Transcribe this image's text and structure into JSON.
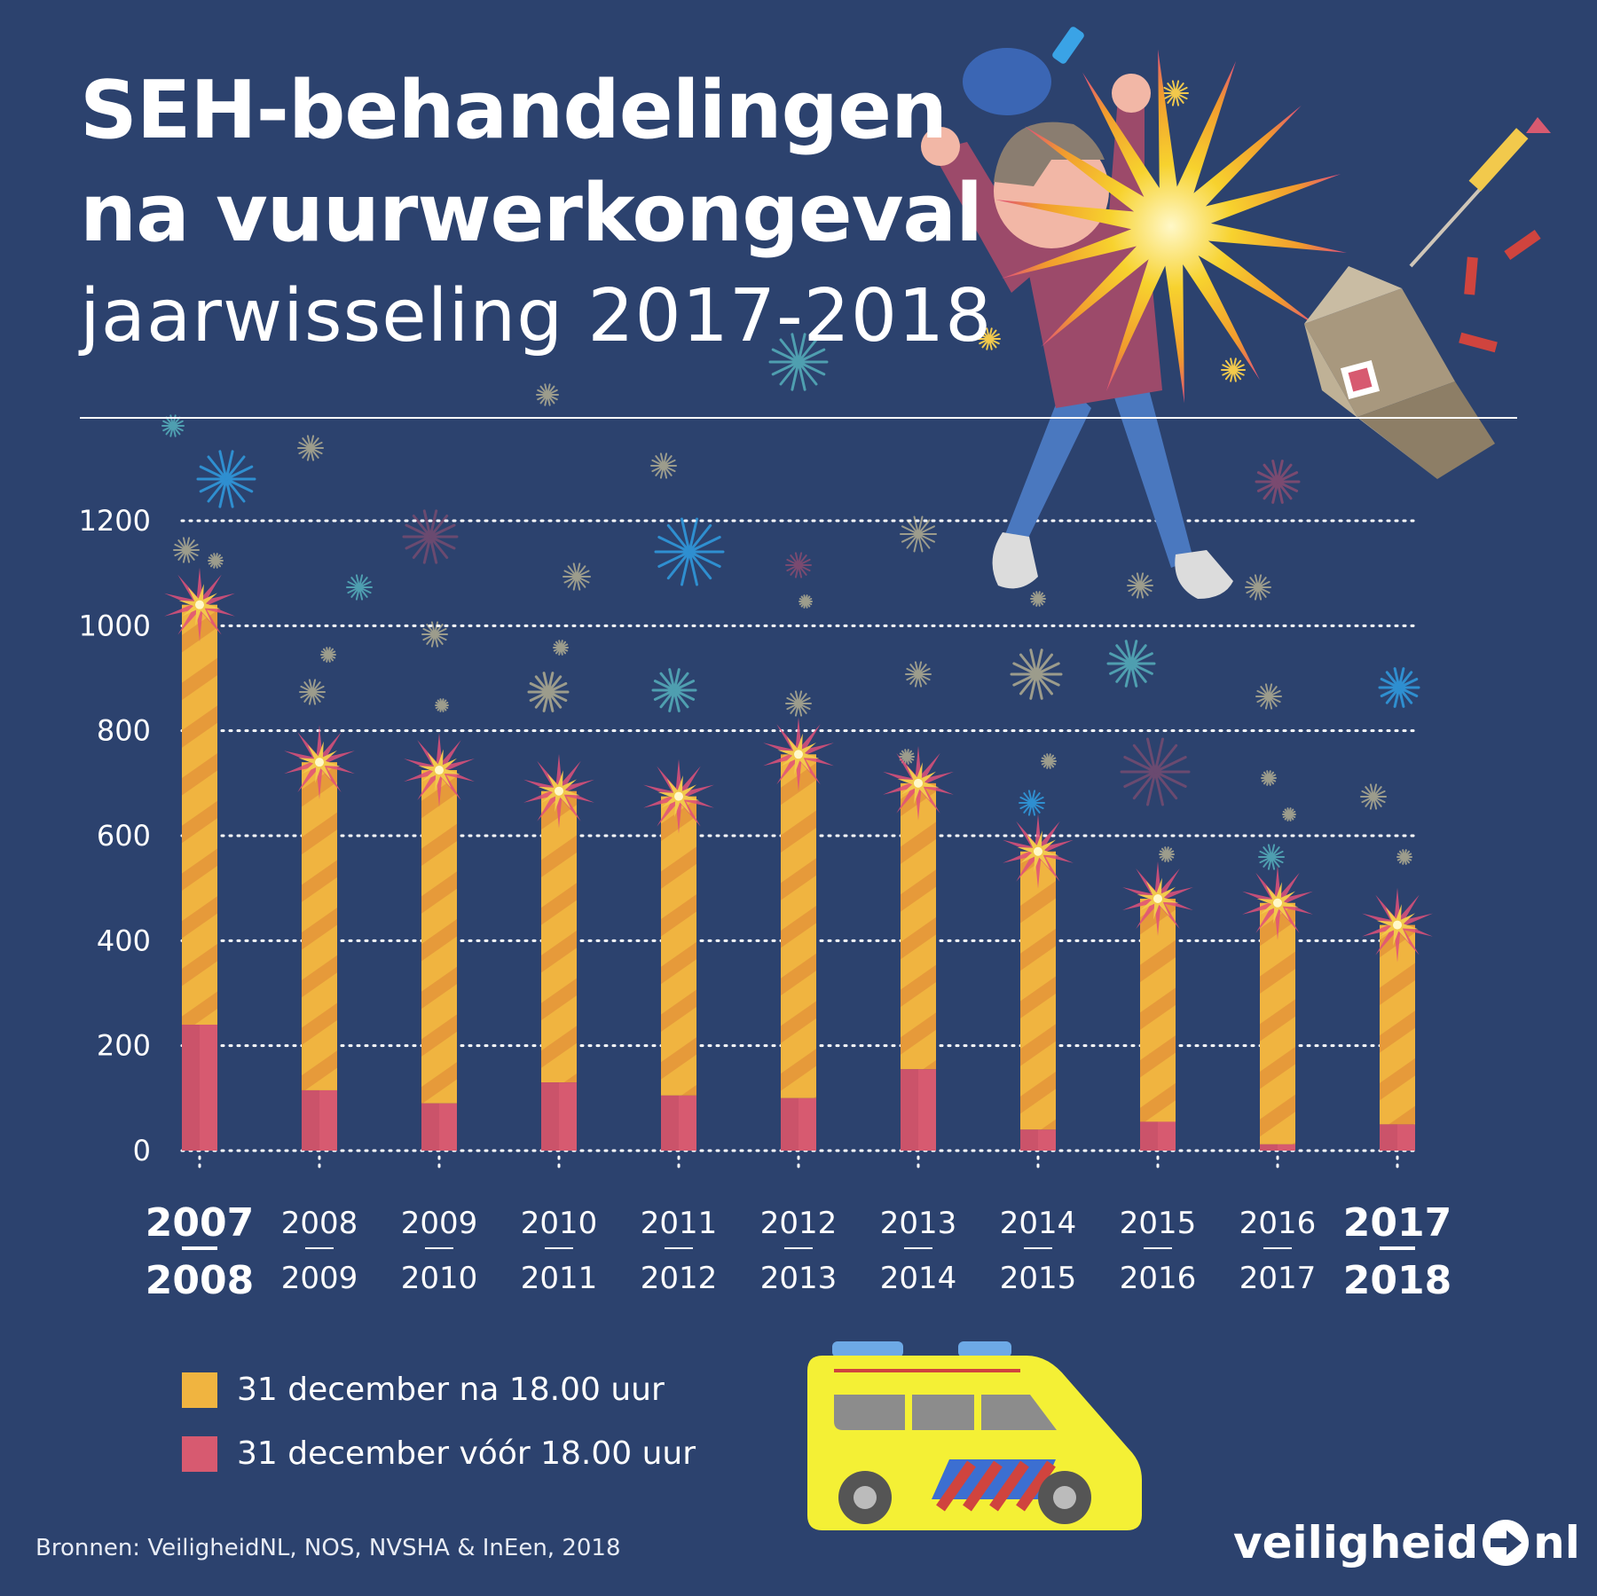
{
  "title": {
    "line1": "SEH-behandelingen",
    "line2": "na vuurwerkongeval",
    "subtitle": "jaarwisseling 2017-2018"
  },
  "colors": {
    "background": "#2c426e",
    "orange": "#f0b440",
    "orange_stripe": "#e69a3a",
    "pink": "#d75a70",
    "pink_dark": "#c04b64",
    "spark": "#f2c94c",
    "spark_outer": "#e0507a"
  },
  "legend": {
    "after": "31 december na 18.00 uur",
    "before": "31 december vóór 18.00 uur"
  },
  "source": "Bronnen: VeiligheidNL, NOS, NVSHA & InEen, 2018",
  "brand": {
    "left": "veiligheid",
    "right": "nl",
    "icon": "arrow-circle-icon"
  },
  "chart_data": {
    "type": "bar",
    "stacked": true,
    "title": "SEH-behandelingen na vuurwerkongeval",
    "ylim": [
      0,
      1200
    ],
    "yticks": [
      0,
      200,
      400,
      600,
      800,
      1000,
      1200
    ],
    "grid": true,
    "categories": [
      {
        "top": "2007",
        "bottom": "2008",
        "bold": true
      },
      {
        "top": "2008",
        "bottom": "2009",
        "bold": false
      },
      {
        "top": "2009",
        "bottom": "2010",
        "bold": false
      },
      {
        "top": "2010",
        "bottom": "2011",
        "bold": false
      },
      {
        "top": "2011",
        "bottom": "2012",
        "bold": false
      },
      {
        "top": "2012",
        "bottom": "2013",
        "bold": false
      },
      {
        "top": "2013",
        "bottom": "2014",
        "bold": false
      },
      {
        "top": "2014",
        "bottom": "2015",
        "bold": false
      },
      {
        "top": "2015",
        "bottom": "2016",
        "bold": false
      },
      {
        "top": "2016",
        "bottom": "2017",
        "bold": false
      },
      {
        "top": "2017",
        "bottom": "2018",
        "bold": true
      }
    ],
    "series": [
      {
        "name": "31 december vóór 18.00 uur",
        "color": "#d75a70",
        "values": [
          240,
          115,
          90,
          130,
          105,
          100,
          155,
          40,
          55,
          12,
          50
        ]
      },
      {
        "name": "31 december na 18.00 uur",
        "color": "#f0b440",
        "values": [
          800,
          625,
          635,
          555,
          570,
          655,
          545,
          530,
          425,
          460,
          380
        ]
      }
    ],
    "totals": [
      1040,
      740,
      725,
      685,
      675,
      755,
      700,
      570,
      480,
      472,
      430
    ]
  }
}
